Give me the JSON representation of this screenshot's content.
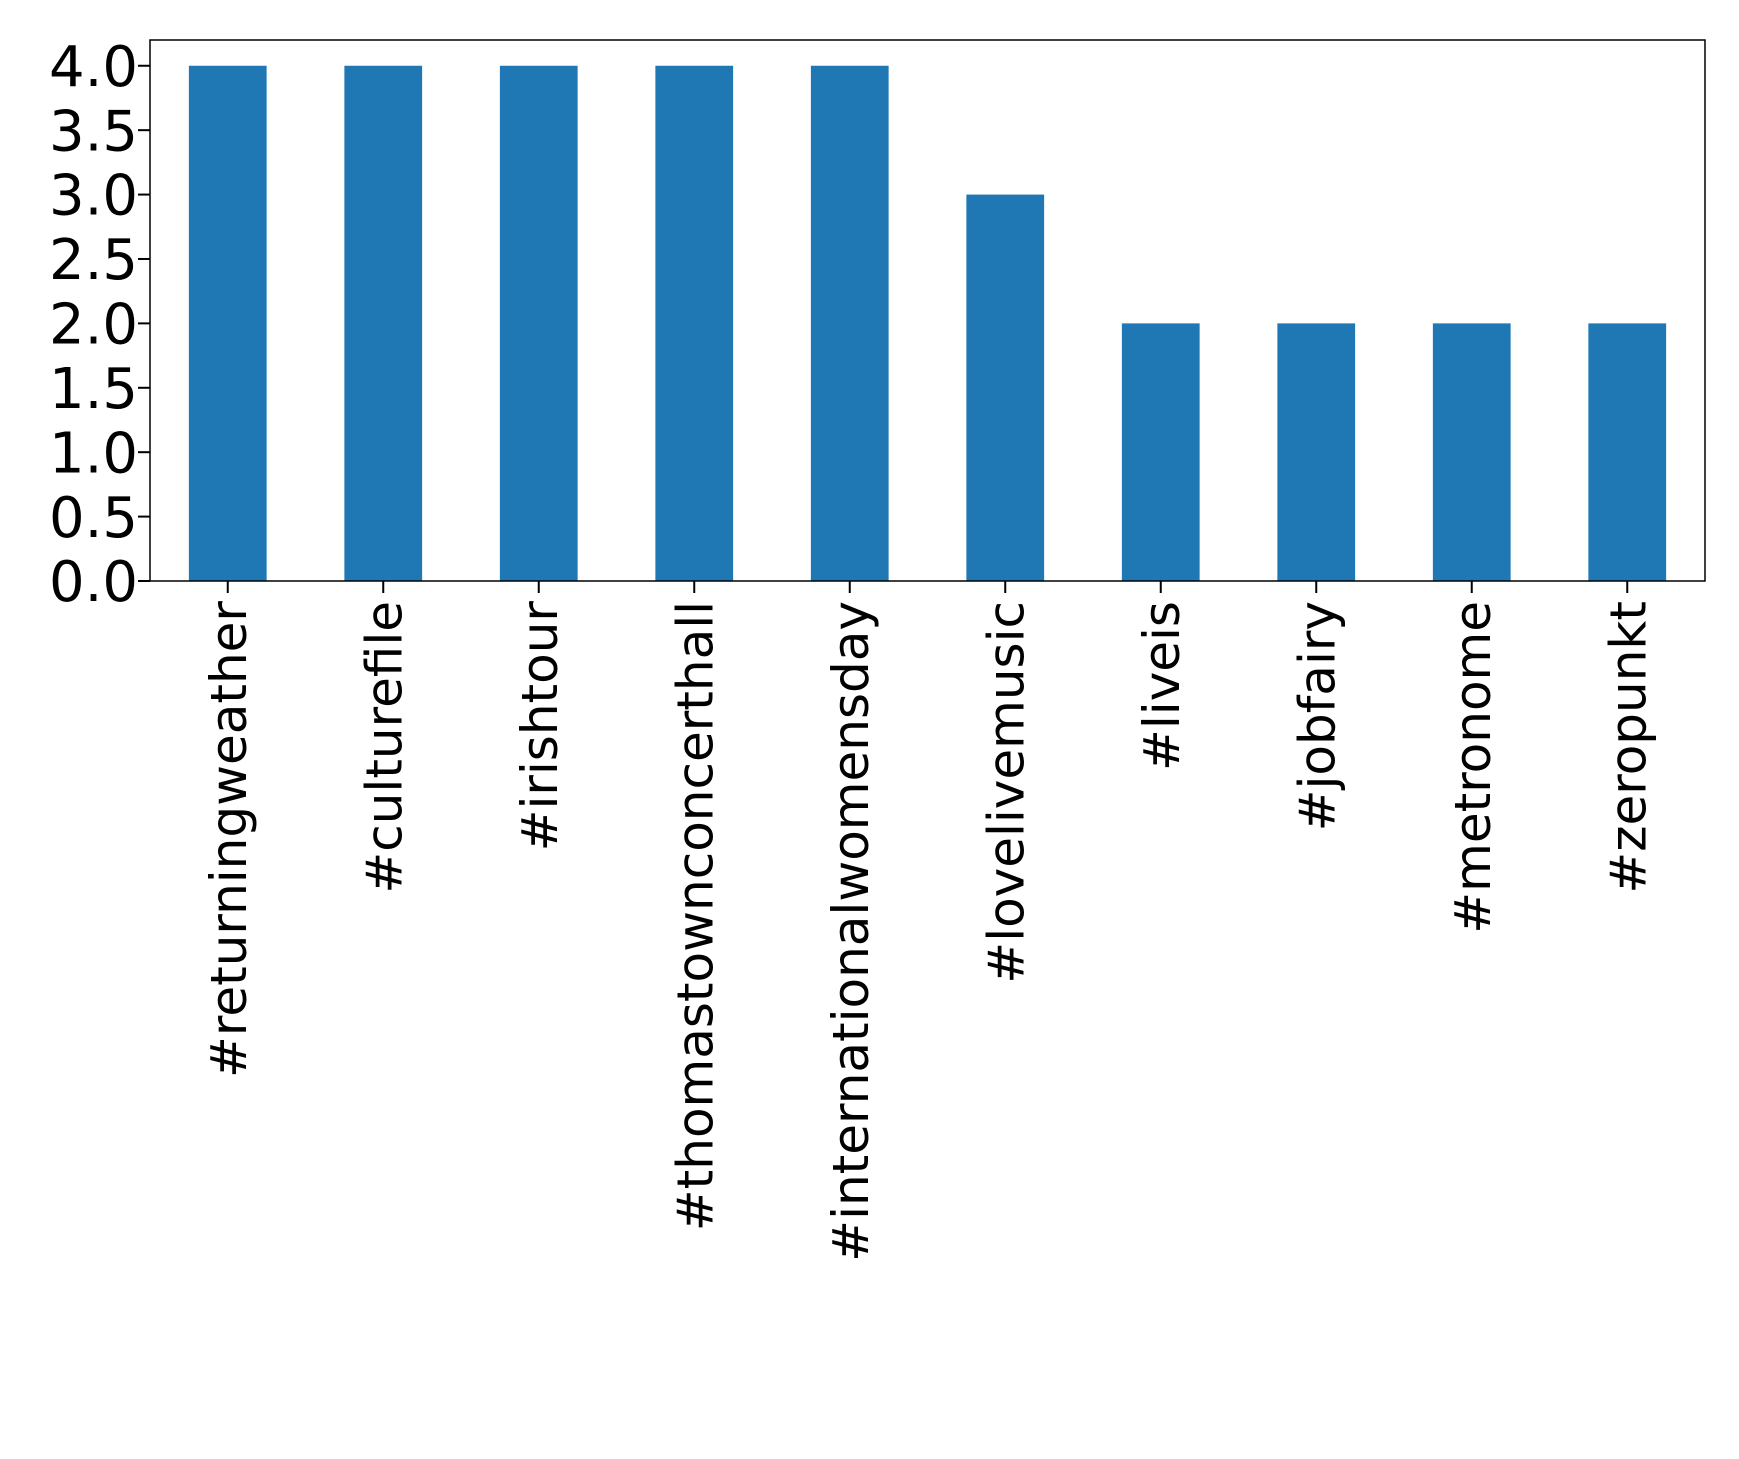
{
  "chart_data": {
    "type": "bar",
    "title": "",
    "xlabel": "",
    "ylabel": "",
    "categories": [
      "#returningweather",
      "#culturefile",
      "#irishtour",
      "#thomastownconcerthall",
      "#internationalwomensday",
      "#lovelivemusic",
      "#liveis",
      "#jobfairy",
      "#metronome",
      "#zeropunkt"
    ],
    "values": [
      4,
      4,
      4,
      4,
      4,
      3,
      2,
      2,
      2,
      2
    ],
    "ylim": [
      0,
      4.2
    ],
    "yticks": [
      0.0,
      0.5,
      1.0,
      1.5,
      2.0,
      2.5,
      3.0,
      3.5,
      4.0
    ],
    "ytick_labels": [
      "0.0",
      "0.5",
      "1.0",
      "1.5",
      "2.0",
      "2.5",
      "3.0",
      "3.5",
      "4.0"
    ],
    "bar_color": "#1f77b4",
    "grid": false,
    "legend": "none"
  }
}
